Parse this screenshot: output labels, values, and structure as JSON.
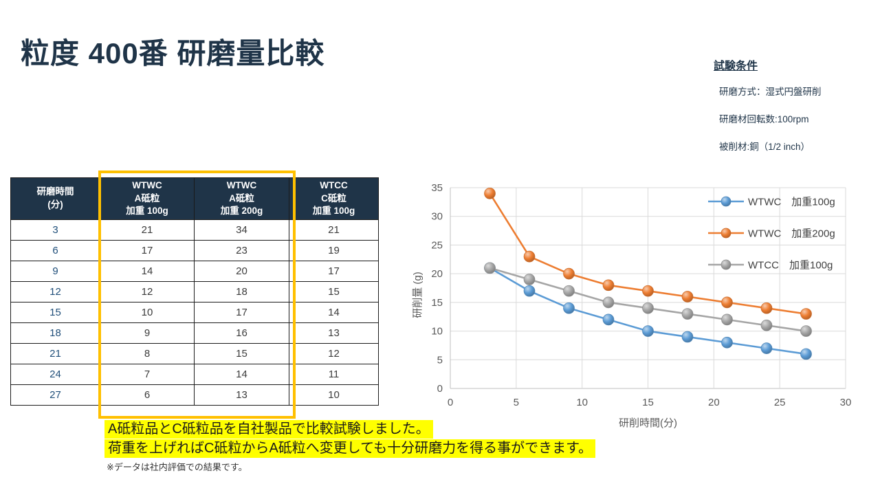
{
  "slide": {
    "title": "粒度 400番 研磨量比較",
    "conditions": {
      "heading": "試験条件",
      "items": [
        "研磨方式：湿式円盤研削",
        "研磨材回転数:100rpm",
        "被削材:銅（1/2 inch）"
      ]
    },
    "table": {
      "headers": [
        [
          "研磨時間",
          "(分)"
        ],
        [
          "WTWC",
          "A砥粒",
          "加重 100g"
        ],
        [
          "WTWC",
          "A砥粒",
          "加重 200g"
        ],
        [
          "WTCC",
          "C砥粒",
          "加重 100g"
        ]
      ],
      "rows": [
        [
          3,
          21,
          34,
          21
        ],
        [
          6,
          17,
          23,
          19
        ],
        [
          9,
          14,
          20,
          17
        ],
        [
          12,
          12,
          18,
          15
        ],
        [
          15,
          10,
          17,
          14
        ],
        [
          18,
          9,
          16,
          13
        ],
        [
          21,
          8,
          15,
          12
        ],
        [
          24,
          7,
          14,
          11
        ],
        [
          27,
          6,
          13,
          10
        ]
      ],
      "highlight_columns": [
        1,
        2
      ],
      "highlight_color": "#FFC000",
      "header_bg": "#1f3448"
    },
    "notes": {
      "line1": "A砥粒品とC砥粒品を自社製品で比較試験しました。",
      "line2": "荷重を上げればC砥粒からA砥粒へ変更しても十分研磨力を得る事ができます。",
      "footnote": "※データは社内評価での結果です。",
      "highlight_color": "#FFFF00"
    },
    "accent_navy": "#1f3448"
  },
  "chart_data": {
    "type": "line",
    "x": [
      3,
      6,
      9,
      12,
      15,
      18,
      21,
      24,
      27
    ],
    "series": [
      {
        "name": "WTWC　加重100g",
        "color": "#5B9BD5",
        "values": [
          21,
          17,
          14,
          12,
          10,
          9,
          8,
          7,
          6
        ]
      },
      {
        "name": "WTWC　加重200g",
        "color": "#ED7D31",
        "values": [
          34,
          23,
          20,
          18,
          17,
          16,
          15,
          14,
          13
        ]
      },
      {
        "name": "WTCC　加重100g",
        "color": "#A5A5A5",
        "values": [
          21,
          19,
          17,
          15,
          14,
          13,
          12,
          11,
          10
        ]
      }
    ],
    "xlabel": "研削時間(分)",
    "ylabel": "研削量 (g)",
    "xlim": [
      0,
      30
    ],
    "ylim": [
      0,
      35
    ],
    "xticks": [
      0,
      5,
      10,
      15,
      20,
      25,
      30
    ],
    "yticks": [
      0,
      5,
      10,
      15,
      20,
      25,
      30,
      35
    ],
    "grid": true,
    "legend_position": "top-right-inside",
    "grid_color": "#D9D9D9",
    "axis_line_color": "#BFBFBF",
    "tick_label_color": "#595959",
    "legend_text_color": "#404040"
  }
}
